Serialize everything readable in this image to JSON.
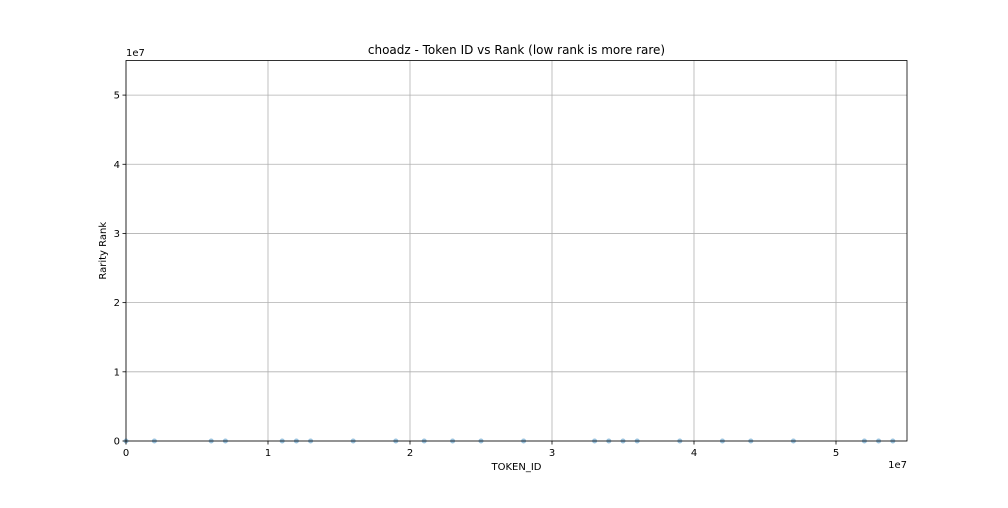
{
  "chart_data": {
    "type": "scatter",
    "title": "choadz - Token ID vs Rank (low rank is more rare)",
    "xlabel": "TOKEN_ID",
    "ylabel": "Rarity Rank",
    "x_offset_text": "1e7",
    "y_offset_text": "1e7",
    "xlim": [
      0,
      55000000
    ],
    "ylim": [
      0,
      55000000
    ],
    "xticks": [
      0,
      10000000,
      20000000,
      30000000,
      40000000,
      50000000
    ],
    "xtick_labels": [
      "0",
      "1",
      "2",
      "3",
      "4",
      "5"
    ],
    "yticks": [
      0,
      10000000,
      20000000,
      30000000,
      40000000,
      50000000
    ],
    "ytick_labels": [
      "0",
      "1",
      "2",
      "3",
      "4",
      "5"
    ],
    "grid": true,
    "marker_color": "#1f77b4",
    "series": [
      {
        "x": [
          0,
          2000000,
          6000000,
          7000000,
          11000000,
          12000000,
          13000000,
          16000000,
          19000000,
          21000000,
          23000000,
          25000000,
          28000000,
          33000000,
          34000000,
          35000000,
          36000000,
          39000000,
          42000000,
          44000000,
          47000000,
          52000000,
          53000000,
          54000000
        ],
        "y": [
          0,
          0,
          0,
          0,
          0,
          0,
          0,
          0,
          0,
          0,
          0,
          0,
          0,
          0,
          0,
          0,
          0,
          0,
          0,
          0,
          0,
          0,
          0,
          0
        ]
      }
    ]
  }
}
